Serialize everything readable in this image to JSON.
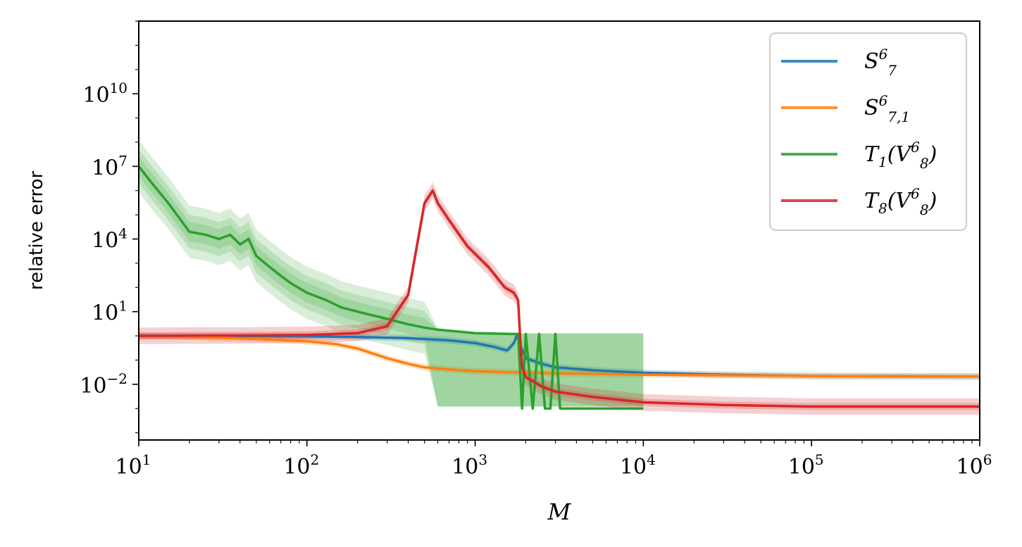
{
  "chart_data": {
    "type": "line",
    "xlabel": "M",
    "ylabel": "relative error",
    "xscale": "log",
    "yscale": "log",
    "xlim": [
      10,
      1000000
    ],
    "ylim": [
      5e-05,
      10000000000000
    ],
    "grid": false,
    "legend": "top-right",
    "x_ticks": [
      {
        "base": "10",
        "exp": "1",
        "value": 10
      },
      {
        "base": "10",
        "exp": "2",
        "value": 100
      },
      {
        "base": "10",
        "exp": "3",
        "value": 1000
      },
      {
        "base": "10",
        "exp": "4",
        "value": 10000
      },
      {
        "base": "10",
        "exp": "5",
        "value": 100000
      },
      {
        "base": "10",
        "exp": "6",
        "value": 1000000
      }
    ],
    "y_ticks": [
      {
        "base": "10",
        "exp": "−2",
        "value": 0.01
      },
      {
        "base": "10",
        "exp": "1",
        "value": 10
      },
      {
        "base": "10",
        "exp": "4",
        "value": 10000
      },
      {
        "base": "10",
        "exp": "7",
        "value": 10000000
      },
      {
        "base": "10",
        "exp": "10",
        "value": 10000000000
      }
    ],
    "series": [
      {
        "name": "S",
        "sup": "6",
        "sub": "7",
        "color": "#1f77b4",
        "x": [
          10,
          20,
          50,
          100,
          200,
          400,
          700,
          1000,
          1300,
          1550,
          1700,
          1780,
          1850,
          2000,
          2500,
          3000,
          5000,
          10000,
          30000,
          100000,
          1000000
        ],
        "y": [
          1.0,
          1.0,
          0.98,
          0.95,
          0.9,
          0.8,
          0.65,
          0.5,
          0.35,
          0.25,
          0.5,
          1.2,
          0.4,
          0.12,
          0.07,
          0.05,
          0.038,
          0.03,
          0.025,
          0.022,
          0.021
        ]
      },
      {
        "name": "S",
        "sup": "6",
        "sub": "7,1",
        "color": "#ff7f0e",
        "x": [
          10,
          20,
          50,
          100,
          150,
          200,
          300,
          400,
          500,
          600,
          800,
          1000,
          2000,
          5000,
          10000,
          100000,
          1000000
        ],
        "y": [
          1.0,
          0.9,
          0.75,
          0.6,
          0.45,
          0.3,
          0.12,
          0.07,
          0.05,
          0.045,
          0.038,
          0.035,
          0.03,
          0.027,
          0.025,
          0.022,
          0.021
        ]
      },
      {
        "name": "T",
        "sub": "1",
        "arg": "V",
        "arg_sup": "6",
        "arg_sub": "8",
        "color": "#2ca02c",
        "x": [
          10,
          12,
          15,
          20,
          25,
          30,
          35,
          40,
          45,
          50,
          60,
          70,
          80,
          100,
          130,
          160,
          200,
          300,
          400,
          500,
          600,
          800,
          1000,
          1300,
          1600,
          1800,
          1900,
          2000,
          2200,
          2400,
          2600,
          2800,
          3000,
          3200,
          3400,
          4000,
          5000,
          10000
        ],
        "y": [
          10000000,
          2000000,
          300000,
          20000,
          15000,
          10000,
          15000,
          6000,
          10000,
          2000,
          700,
          300,
          150,
          60,
          30,
          15,
          10,
          5,
          3,
          2.2,
          1.8,
          1.5,
          1.3,
          1.25,
          1.2,
          1.2,
          0.001,
          1.2,
          0.001,
          1.2,
          0.001,
          0.001,
          1.2,
          0.001,
          0.001,
          0.001,
          0.001,
          0.001
        ]
      },
      {
        "name": "T",
        "sub": "8",
        "arg": "V",
        "arg_sup": "6",
        "arg_sub": "8",
        "color": "#d62728",
        "x": [
          10,
          50,
          100,
          200,
          300,
          400,
          450,
          500,
          560,
          600,
          700,
          900,
          1200,
          1500,
          1700,
          1800,
          1850,
          1900,
          2000,
          2500,
          3000,
          5000,
          10000,
          30000,
          100000,
          1000000
        ],
        "y": [
          1.0,
          1.05,
          1.1,
          1.3,
          2.5,
          50,
          5000,
          300000,
          1000000,
          300000,
          60000,
          5000,
          700,
          100,
          60,
          30,
          1.0,
          0.05,
          0.02,
          0.008,
          0.005,
          0.003,
          0.0018,
          0.0014,
          0.0012,
          0.0012
        ]
      }
    ]
  }
}
